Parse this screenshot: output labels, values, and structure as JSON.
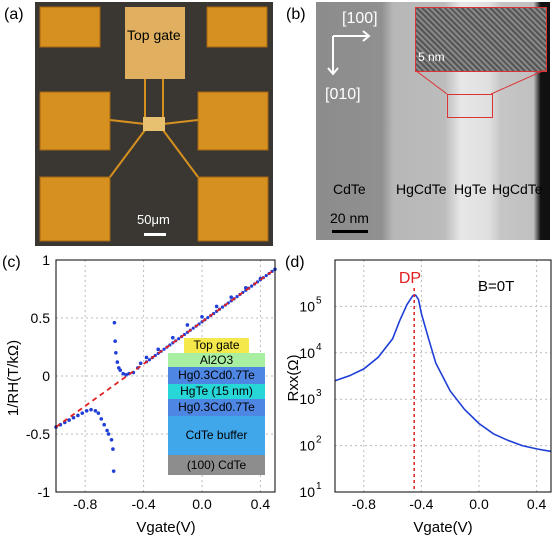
{
  "panels": {
    "a": {
      "label": "(a)",
      "top_gate_label": "Top gate",
      "scale_bar": "50μm"
    },
    "b": {
      "label": "(b)",
      "dir_100": "[100]",
      "dir_010": "[010]",
      "inset_scale": "5 nm",
      "layers": [
        "CdTe",
        "HgCdTe",
        "HgTe",
        "HgCdTe"
      ],
      "scale_bar": "20 nm"
    },
    "c": {
      "label": "(c)",
      "stack": [
        "Top gate",
        "Al2O3",
        "Hg0.3Cd0.7Te",
        "HgTe (15 nm)",
        "Hg0.3Cd0.7Te",
        "CdTe buffer",
        "(100) CdTe"
      ]
    },
    "d": {
      "label": "(d)",
      "dp_label": "DP",
      "field_label": "B=0T"
    }
  },
  "chart_data": [
    {
      "type": "scatter",
      "panel": "c",
      "xlabel": "Vgate(V)",
      "ylabel": "1/RH(T/kΩ)",
      "xlim": [
        -1.0,
        0.5
      ],
      "ylim": [
        -1.0,
        1.0
      ],
      "xticks": [
        "-0.8",
        "-0.4",
        "0.0",
        "0.4"
      ],
      "yticks": [
        "1",
        "0.5",
        "0",
        "-0.5",
        "-1"
      ],
      "grid": true,
      "series": [
        {
          "color": "#1f3fd6",
          "points": [
            [
              -1.0,
              -0.44
            ],
            [
              -0.97,
              -0.42
            ],
            [
              -0.94,
              -0.4
            ],
            [
              -0.91,
              -0.38
            ],
            [
              -0.88,
              -0.36
            ],
            [
              -0.85,
              -0.34
            ],
            [
              -0.82,
              -0.32
            ],
            [
              -0.79,
              -0.3
            ],
            [
              -0.76,
              -0.29
            ],
            [
              -0.73,
              -0.3
            ],
            [
              -0.71,
              -0.32
            ],
            [
              -0.69,
              -0.37
            ],
            [
              -0.67,
              -0.42
            ],
            [
              -0.65,
              -0.47
            ],
            [
              -0.64,
              -0.5
            ],
            [
              -0.62,
              -0.55
            ],
            [
              -0.61,
              -0.63
            ],
            [
              -0.605,
              -0.82
            ],
            [
              -0.6,
              0.46
            ],
            [
              -0.595,
              0.3
            ],
            [
              -0.59,
              0.2
            ],
            [
              -0.58,
              0.12
            ],
            [
              -0.57,
              0.07
            ],
            [
              -0.56,
              0.05
            ],
            [
              -0.54,
              0.02
            ],
            [
              -0.52,
              0.01
            ],
            [
              -0.5,
              0.02
            ],
            [
              -0.47,
              0.03
            ],
            [
              -0.44,
              0.07
            ],
            [
              -0.42,
              0.11
            ],
            [
              -0.38,
              0.16
            ],
            [
              -0.3,
              0.23
            ],
            [
              -0.2,
              0.33
            ],
            [
              -0.1,
              0.44
            ],
            [
              0.0,
              0.51
            ],
            [
              0.1,
              0.6
            ],
            [
              0.2,
              0.68
            ],
            [
              0.3,
              0.76
            ],
            [
              0.4,
              0.84
            ],
            [
              0.5,
              0.92
            ]
          ]
        },
        {
          "color": "#e02020",
          "style": "dashed",
          "points": [
            [
              -1.0,
              -0.44
            ],
            [
              0.5,
              0.92
            ]
          ]
        }
      ]
    },
    {
      "type": "line",
      "panel": "d",
      "xlabel": "Vgate(V)",
      "ylabel": "Rxx(Ω)",
      "xlim": [
        -1.0,
        0.5
      ],
      "ylim": [
        10,
        1000000
      ],
      "yscale": "log",
      "xticks": [
        "-0.8",
        "-0.4",
        "0.0",
        "0.4"
      ],
      "yticks": [
        "10^5",
        "10^4",
        "10^3",
        "10^2",
        "10^1"
      ],
      "grid": true,
      "dp_x": -0.45,
      "series": [
        {
          "color": "#1f3fd6",
          "points": [
            [
              -1.0,
              2500
            ],
            [
              -0.9,
              3200
            ],
            [
              -0.8,
              4500
            ],
            [
              -0.7,
              8000
            ],
            [
              -0.6,
              20000
            ],
            [
              -0.55,
              50000
            ],
            [
              -0.5,
              110000
            ],
            [
              -0.46,
              170000
            ],
            [
              -0.44,
              175000
            ],
            [
              -0.42,
              140000
            ],
            [
              -0.4,
              70000
            ],
            [
              -0.35,
              20000
            ],
            [
              -0.3,
              6000
            ],
            [
              -0.2,
              1500
            ],
            [
              -0.1,
              600
            ],
            [
              0.0,
              300
            ],
            [
              0.1,
              180
            ],
            [
              0.2,
              130
            ],
            [
              0.3,
              100
            ],
            [
              0.4,
              85
            ],
            [
              0.5,
              75
            ]
          ]
        }
      ]
    }
  ]
}
